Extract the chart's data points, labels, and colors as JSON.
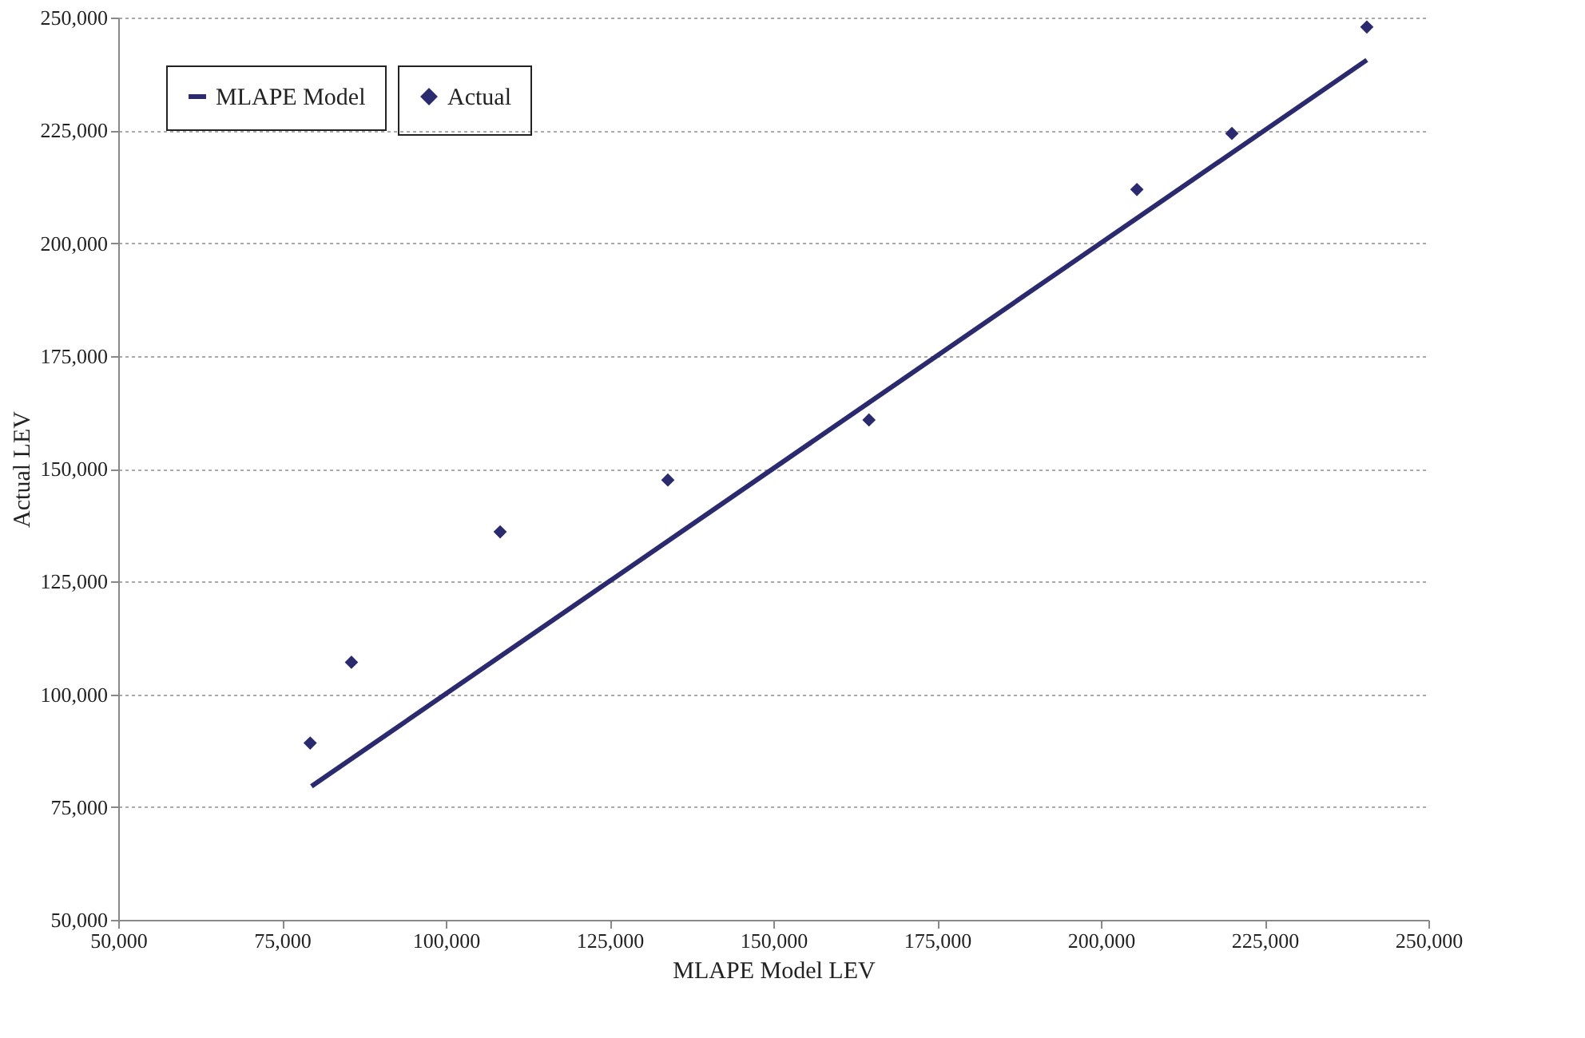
{
  "chart_data": {
    "type": "scatter",
    "xlabel": "MLAPE Model LEV",
    "ylabel": "Actual LEV",
    "xlim": [
      50000,
      250000
    ],
    "ylim": [
      50000,
      250000
    ],
    "xticks": [
      {
        "value": 50000,
        "label": "50,000"
      },
      {
        "value": 75000,
        "label": "75,000"
      },
      {
        "value": 100000,
        "label": "100,000"
      },
      {
        "value": 125000,
        "label": "125,000"
      },
      {
        "value": 150000,
        "label": "150,000"
      },
      {
        "value": 175000,
        "label": "175,000"
      },
      {
        "value": 200000,
        "label": "200,000"
      },
      {
        "value": 225000,
        "label": "225,000"
      },
      {
        "value": 250000,
        "label": "250,000"
      }
    ],
    "yticks": [
      {
        "value": 50000,
        "label": "50,000"
      },
      {
        "value": 75000,
        "label": "75,000"
      },
      {
        "value": 100000,
        "label": "100,000"
      },
      {
        "value": 125000,
        "label": "125,000"
      },
      {
        "value": 150000,
        "label": "150,000"
      },
      {
        "value": 175000,
        "label": "175,000"
      },
      {
        "value": 200000,
        "label": "200,000"
      },
      {
        "value": 225000,
        "label": "225,000"
      },
      {
        "value": 250000,
        "label": "250,000"
      }
    ],
    "grid": "y",
    "legend": "top left",
    "series": [
      {
        "name": "MLAPE Model",
        "type": "line",
        "color": "#2b2a6e",
        "marker": "none",
        "x": [
          79500,
          240600
        ],
        "values": [
          79600,
          240600
        ]
      },
      {
        "name": "Actual",
        "type": "scatter",
        "color": "#2b2a6e",
        "marker": "diamond",
        "x": [
          79300,
          85600,
          108300,
          133900,
          164600,
          205500,
          220000,
          240600
        ],
        "values": [
          89200,
          107100,
          136000,
          147500,
          160800,
          211900,
          224300,
          247900
        ]
      }
    ]
  }
}
